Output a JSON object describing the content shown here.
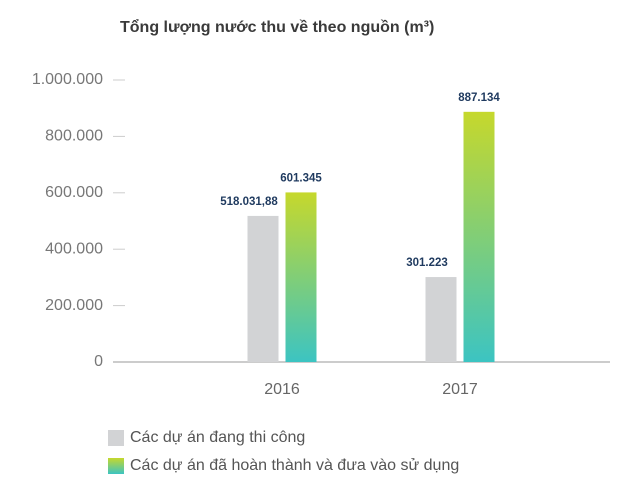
{
  "chart_data": {
    "type": "bar",
    "title": "Tổng lượng nước thu về theo nguồn (m³)",
    "categories": [
      "2016",
      "2017"
    ],
    "series": [
      {
        "name": "Các dự án đang thi công",
        "color": "#d2d3d5",
        "values": [
          518031.88,
          301223
        ],
        "value_labels": [
          "518.031,88",
          "301.223"
        ]
      },
      {
        "name": "Các dự án đã hoàn thành và đưa vào sử dụng",
        "color": [
          "#c6d82c",
          "#3cc4c2"
        ],
        "values": [
          601345,
          887134
        ],
        "value_labels": [
          "601.345",
          "887.134"
        ]
      }
    ],
    "ylim": [
      0,
      1000000
    ],
    "yticks": [
      0,
      {
        "value": 200000,
        "label": "200.000"
      },
      {
        "value": 400000,
        "label": "400.000"
      },
      {
        "value": 600000,
        "label": "600.000"
      },
      {
        "value": 800000,
        "label": "800.000"
      },
      {
        "value": 1000000,
        "label": "1.000.000"
      }
    ]
  }
}
